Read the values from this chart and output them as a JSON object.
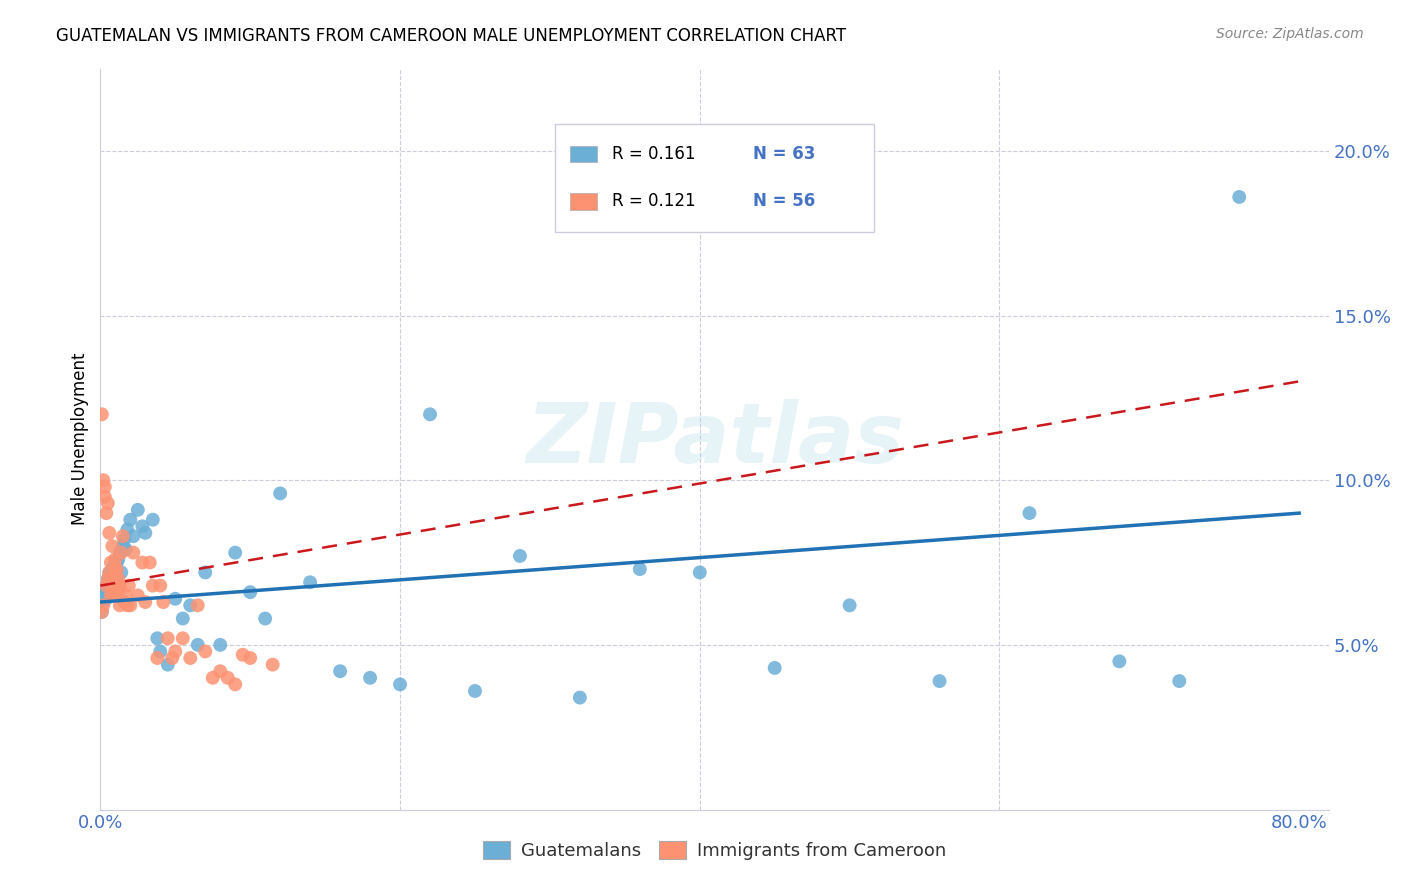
{
  "title": "GUATEMALAN VS IMMIGRANTS FROM CAMEROON MALE UNEMPLOYMENT CORRELATION CHART",
  "source": "Source: ZipAtlas.com",
  "ylabel_label": "Male Unemployment",
  "xlim": [
    0.0,
    0.82
  ],
  "ylim": [
    0.0,
    0.225
  ],
  "x_tick_positions": [
    0.0,
    0.8
  ],
  "x_tick_labels": [
    "0.0%",
    "80.0%"
  ],
  "y_tick_positions": [
    0.05,
    0.1,
    0.15,
    0.2
  ],
  "y_tick_labels": [
    "5.0%",
    "10.0%",
    "15.0%",
    "20.0%"
  ],
  "blue_color": "#6BAED6",
  "pink_color": "#FC9272",
  "blue_line_color": "#2171B5",
  "pink_line_color": "#CB181D",
  "tick_label_color": "#4472C4",
  "watermark": "ZIPatlas",
  "legend_r1": "R = 0.161",
  "legend_n1": "N = 63",
  "legend_r2": "R = 0.121",
  "legend_n2": "N = 56",
  "guatemalan_x": [
    0.001,
    0.002,
    0.003,
    0.003,
    0.004,
    0.004,
    0.005,
    0.005,
    0.006,
    0.006,
    0.007,
    0.007,
    0.008,
    0.008,
    0.009,
    0.009,
    0.01,
    0.01,
    0.011,
    0.012,
    0.012,
    0.013,
    0.014,
    0.015,
    0.016,
    0.017,
    0.018,
    0.02,
    0.022,
    0.025,
    0.028,
    0.03,
    0.035,
    0.038,
    0.04,
    0.045,
    0.05,
    0.055,
    0.06,
    0.065,
    0.07,
    0.08,
    0.09,
    0.1,
    0.11,
    0.12,
    0.14,
    0.16,
    0.18,
    0.2,
    0.22,
    0.25,
    0.28,
    0.32,
    0.36,
    0.4,
    0.45,
    0.5,
    0.56,
    0.62,
    0.68,
    0.72,
    0.76
  ],
  "guatemalan_y": [
    0.06,
    0.063,
    0.065,
    0.067,
    0.064,
    0.068,
    0.066,
    0.07,
    0.068,
    0.072,
    0.065,
    0.071,
    0.069,
    0.073,
    0.067,
    0.074,
    0.07,
    0.072,
    0.075,
    0.068,
    0.076,
    0.078,
    0.072,
    0.08,
    0.082,
    0.079,
    0.085,
    0.088,
    0.083,
    0.091,
    0.086,
    0.084,
    0.088,
    0.052,
    0.048,
    0.044,
    0.064,
    0.058,
    0.062,
    0.05,
    0.072,
    0.05,
    0.078,
    0.066,
    0.058,
    0.096,
    0.069,
    0.042,
    0.04,
    0.038,
    0.12,
    0.036,
    0.077,
    0.034,
    0.073,
    0.072,
    0.043,
    0.062,
    0.039,
    0.09,
    0.045,
    0.039,
    0.186
  ],
  "cameroon_x": [
    0.001,
    0.001,
    0.002,
    0.002,
    0.003,
    0.003,
    0.004,
    0.004,
    0.005,
    0.005,
    0.006,
    0.006,
    0.007,
    0.007,
    0.008,
    0.008,
    0.009,
    0.009,
    0.01,
    0.01,
    0.011,
    0.011,
    0.012,
    0.012,
    0.013,
    0.013,
    0.014,
    0.015,
    0.016,
    0.017,
    0.018,
    0.019,
    0.02,
    0.022,
    0.025,
    0.028,
    0.03,
    0.033,
    0.035,
    0.038,
    0.04,
    0.042,
    0.045,
    0.048,
    0.05,
    0.055,
    0.06,
    0.065,
    0.07,
    0.075,
    0.08,
    0.085,
    0.09,
    0.095,
    0.1,
    0.115
  ],
  "cameroon_y": [
    0.06,
    0.12,
    0.062,
    0.1,
    0.095,
    0.098,
    0.068,
    0.09,
    0.07,
    0.093,
    0.072,
    0.084,
    0.065,
    0.075,
    0.068,
    0.08,
    0.065,
    0.07,
    0.072,
    0.076,
    0.068,
    0.073,
    0.07,
    0.066,
    0.062,
    0.068,
    0.078,
    0.083,
    0.063,
    0.065,
    0.062,
    0.068,
    0.062,
    0.078,
    0.065,
    0.075,
    0.063,
    0.075,
    0.068,
    0.046,
    0.068,
    0.063,
    0.052,
    0.046,
    0.048,
    0.052,
    0.046,
    0.062,
    0.048,
    0.04,
    0.042,
    0.04,
    0.038,
    0.047,
    0.046,
    0.044
  ],
  "blue_trend_x0": 0.0,
  "blue_trend_y0": 0.063,
  "blue_trend_x1": 0.8,
  "blue_trend_y1": 0.09,
  "pink_trend_x0": 0.0,
  "pink_trend_y0": 0.068,
  "pink_trend_x1": 0.8,
  "pink_trend_y1": 0.13
}
